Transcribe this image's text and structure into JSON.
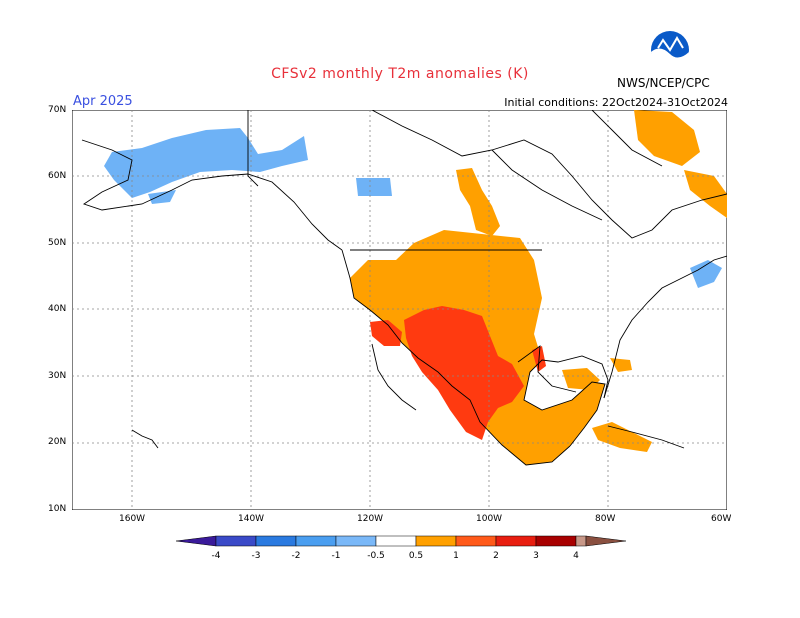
{
  "header": {
    "title": "CFSv2 monthly T2m anomalies (K)",
    "month": "Apr 2025",
    "initial_conditions": "Initial conditions: 22Oct2024-31Oct2024",
    "agency": "NWS/NCEP/CPC",
    "logo_icon": "noaa-logo-icon"
  },
  "map": {
    "lat_ticks": [
      "70N",
      "60N",
      "50N",
      "40N",
      "30N",
      "20N",
      "10N"
    ],
    "lon_ticks": [
      "160W",
      "140W",
      "120W",
      "100W",
      "80W",
      "60W"
    ]
  },
  "colorbar": {
    "labels": [
      "-4",
      "-3",
      "-2",
      "-1",
      "-0.5",
      "0.5",
      "1",
      "2",
      "3",
      "4"
    ],
    "colors": [
      "#3a1a9a",
      "#3a4ac8",
      "#2a7ae0",
      "#4a9ef0",
      "#7ab8f8",
      "#ffffff",
      "#ffa000",
      "#ff5a1a",
      "#e81e10",
      "#a80000",
      "#c89888",
      "#8a5040"
    ]
  },
  "anomaly_colors": {
    "warm_0_5_1": "#ffa000",
    "warm_1_2": "#ff3a10",
    "cool_-1_-0_5": "#6eb2f6",
    "land_outline": "#000000"
  }
}
